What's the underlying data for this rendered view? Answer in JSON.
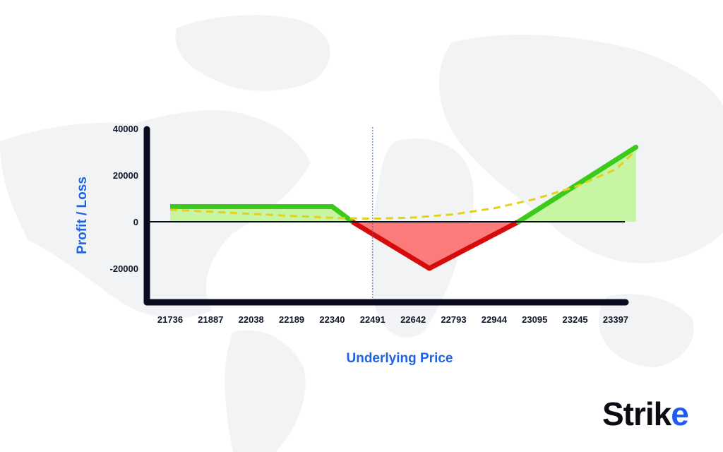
{
  "colors": {
    "profit_line": "#3ccb1b",
    "profit_fill": "#c8f5a4",
    "loss_line": "#d60c0c",
    "loss_fill": "#fb7b7b",
    "dashed": "#e2d21c",
    "axis": "#0b0b1f",
    "title_blue": "#1f63e0",
    "logo_blue": "#1e5bf0"
  },
  "logo": {
    "text": "Strike"
  },
  "chart_data": {
    "type": "line",
    "xlabel": "Underlying Price",
    "ylabel": "Profit / Loss",
    "categories": [
      "21736",
      "21887",
      "22038",
      "22189",
      "22340",
      "22491",
      "22642",
      "22793",
      "22944",
      "23095",
      "23245",
      "23397"
    ],
    "y_ticks": [
      "40000",
      "20000",
      "0",
      "-20000"
    ],
    "ylim": [
      -32000,
      41000
    ],
    "marker_x_index": 5,
    "series": [
      {
        "x": [
          0,
          4,
          4.5,
          6.4,
          8.6,
          11.5
        ],
        "y": [
          6500,
          6500,
          0,
          -20000,
          0,
          32000
        ]
      },
      {
        "x": [
          0,
          1,
          2,
          3,
          4,
          5,
          6,
          7,
          8,
          9,
          10,
          11,
          11.5
        ],
        "y": [
          5200,
          4300,
          3400,
          2500,
          1700,
          1300,
          1800,
          3200,
          5800,
          9700,
          15000,
          22500,
          30500
        ]
      }
    ]
  }
}
